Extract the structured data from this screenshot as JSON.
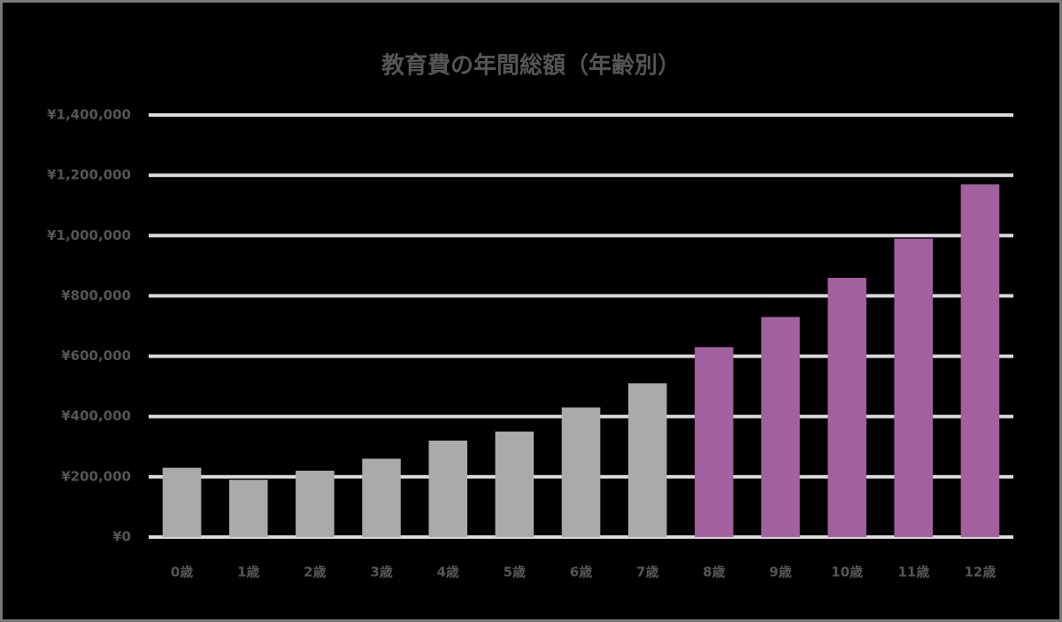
{
  "chart_data": {
    "type": "bar",
    "title": "教育費の年間総額（年齢別）",
    "categories": [
      "0歳",
      "1歳",
      "2歳",
      "3歳",
      "4歳",
      "5歳",
      "6歳",
      "7歳",
      "8歳",
      "9歳",
      "10歳",
      "11歳",
      "12歳"
    ],
    "values": [
      230000,
      190000,
      220000,
      260000,
      320000,
      350000,
      430000,
      510000,
      630000,
      730000,
      860000,
      990000,
      1170000
    ],
    "colors": [
      "#aaaaaa",
      "#aaaaaa",
      "#aaaaaa",
      "#aaaaaa",
      "#aaaaaa",
      "#aaaaaa",
      "#aaaaaa",
      "#aaaaaa",
      "#a3609f",
      "#a3609f",
      "#a3609f",
      "#a3609f",
      "#a3609f"
    ],
    "ylim": [
      0,
      1400000
    ],
    "yticks": [
      {
        "value": 0,
        "label": "¥0"
      },
      {
        "value": 200000,
        "label": "¥200,000"
      },
      {
        "value": 400000,
        "label": "¥400,000"
      },
      {
        "value": 600000,
        "label": "¥600,000"
      },
      {
        "value": 800000,
        "label": "¥800,000"
      },
      {
        "value": 1000000,
        "label": "¥1,000,000"
      },
      {
        "value": 1200000,
        "label": "¥1,200,000"
      },
      {
        "value": 1400000,
        "label": "¥1,400,000"
      }
    ],
    "grid": true
  }
}
